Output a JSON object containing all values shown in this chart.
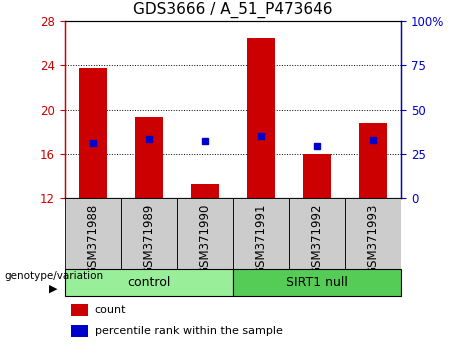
{
  "title": "GDS3666 / A_51_P473646",
  "categories": [
    "GSM371988",
    "GSM371989",
    "GSM371990",
    "GSM371991",
    "GSM371992",
    "GSM371993"
  ],
  "bar_bottoms": [
    12,
    12,
    12,
    12,
    12,
    12
  ],
  "bar_tops": [
    23.8,
    19.3,
    13.3,
    26.5,
    16.0,
    18.8
  ],
  "percentile_values": [
    17.0,
    17.4,
    17.2,
    17.6,
    16.7,
    17.3
  ],
  "ylim": [
    12,
    28
  ],
  "yticks": [
    12,
    16,
    20,
    24,
    28
  ],
  "right_ylim": [
    0,
    100
  ],
  "right_yticks": [
    0,
    25,
    50,
    75,
    100
  ],
  "right_yticklabels": [
    "0",
    "25",
    "50",
    "75",
    "100%"
  ],
  "bar_color": "#cc0000",
  "percentile_color": "#0000cc",
  "bar_width": 0.5,
  "control_label": "control",
  "sirt1_label": "SIRT1 null",
  "group_label": "genotype/variation",
  "control_color": "#99ee99",
  "sirt1_color": "#55cc55",
  "legend_count_label": "count",
  "legend_pct_label": "percentile rank within the sample",
  "title_fontsize": 11,
  "tick_fontsize": 8.5,
  "left_tick_color": "#cc0000",
  "right_tick_color": "#0000cc",
  "grid_color": "#000000"
}
